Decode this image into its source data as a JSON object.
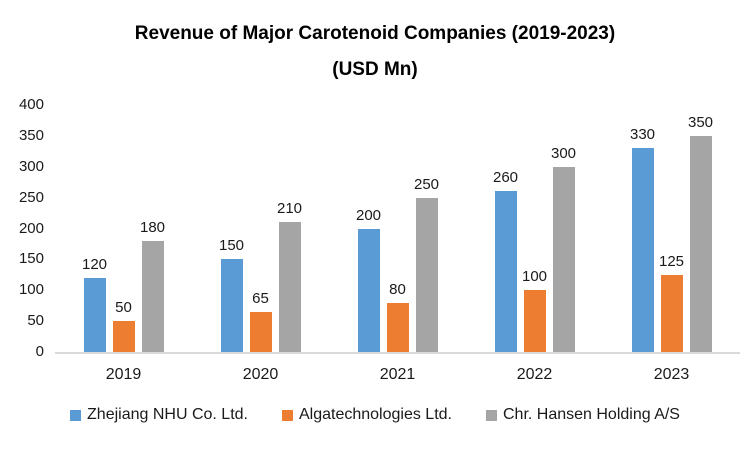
{
  "chart_data": {
    "type": "bar",
    "title": "Revenue of Major Carotenoid Companies (2019-2023) (USD Mn)",
    "title_line1": "Revenue of Major Carotenoid Companies (2019-2023)",
    "title_line2": "(USD Mn)",
    "categories": [
      "2019",
      "2020",
      "2021",
      "2022",
      "2023"
    ],
    "series": [
      {
        "name": "Zhejiang NHU Co. Ltd.",
        "color": "#5B9BD5",
        "values": [
          120,
          150,
          200,
          260,
          330
        ]
      },
      {
        "name": "Algatechnologies Ltd.",
        "color": "#ED7D31",
        "values": [
          50,
          65,
          80,
          100,
          125
        ]
      },
      {
        "name": "Chr. Hansen Holding A/S",
        "color": "#A5A5A5",
        "values": [
          180,
          210,
          250,
          300,
          350
        ]
      }
    ],
    "xlabel": "",
    "ylabel": "",
    "ylim": [
      0,
      400
    ],
    "yticks": [
      0,
      50,
      100,
      150,
      200,
      250,
      300,
      350,
      400
    ],
    "grid": false,
    "legend_position": "bottom",
    "data_labels": true,
    "colors": {
      "baseline": "#d9d9d9",
      "text": "#1a1a1a",
      "title_text": "#000000",
      "background": "#ffffff"
    }
  }
}
